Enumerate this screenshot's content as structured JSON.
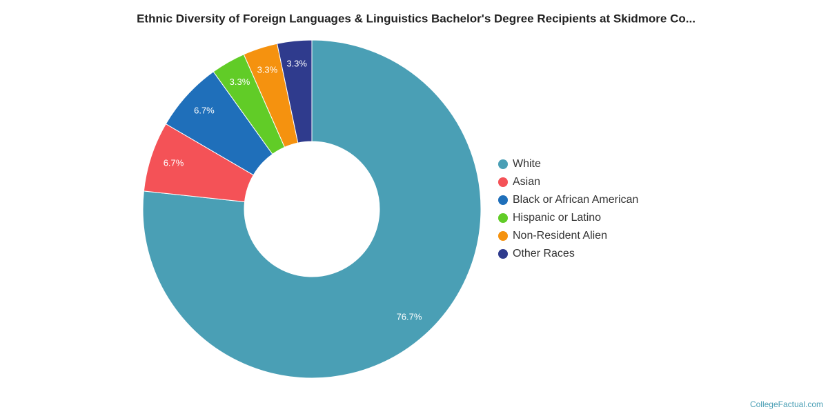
{
  "chart_data": {
    "type": "donut",
    "title": "Ethnic Diversity of Foreign Languages & Linguistics Bachelor's Degree Recipients at Skidmore Co...",
    "categories": [
      "White",
      "Asian",
      "Black or African American",
      "Hispanic or Latino",
      "Non-Resident Alien",
      "Other Races"
    ],
    "values": [
      76.7,
      6.7,
      6.7,
      3.3,
      3.3,
      3.3
    ],
    "value_labels": [
      "76.7%",
      "6.7%",
      "6.7%",
      "3.3%",
      "3.3%",
      "3.3%"
    ],
    "colors": [
      "#4a9fb5",
      "#f45257",
      "#1f6fba",
      "#61cc27",
      "#f5920f",
      "#2f3b8d"
    ],
    "legend": "right",
    "credit": "CollegeFactual.com"
  }
}
